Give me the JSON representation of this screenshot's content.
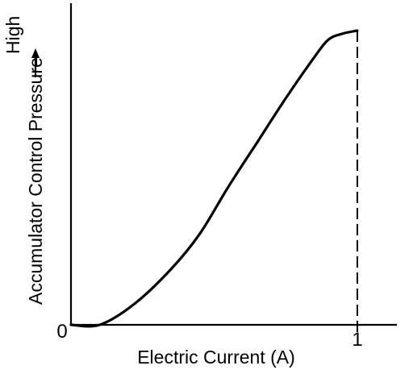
{
  "chart_data": {
    "type": "line",
    "xlabel": "Electric Current (A)",
    "ylabel": "Accumulator Control Pressure",
    "ylabel_high": "High",
    "x_ticks": [
      "0",
      "1"
    ],
    "xlim": [
      0,
      1.12
    ],
    "ylim": [
      0,
      1
    ],
    "grid": false,
    "series": [
      {
        "x": [
          0.0,
          0.1,
          0.22,
          0.35,
          0.45,
          0.55,
          0.65,
          0.75,
          0.85,
          0.9,
          0.95,
          1.0
        ],
        "values": [
          0.0,
          0.0,
          0.07,
          0.19,
          0.31,
          0.47,
          0.62,
          0.77,
          0.91,
          0.97,
          0.99,
          1.0
        ]
      }
    ],
    "reference_line": {
      "x": 1.0
    }
  }
}
